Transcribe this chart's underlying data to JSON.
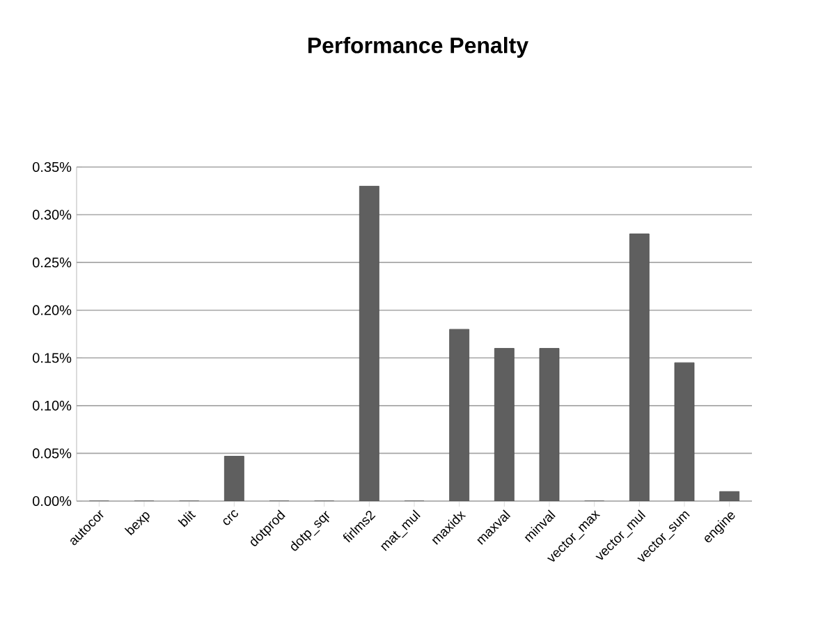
{
  "chart_data": {
    "type": "bar",
    "title": "**Performance Penalty**",
    "categories": [
      "autocor",
      "bexp",
      "blit",
      "crc",
      "dotprod",
      "dotp_sqr",
      "firlms2",
      "mat_mul",
      "maxidx",
      "maxval",
      "minval",
      "vector_max",
      "vector_mul",
      "vector_sum",
      "engine"
    ],
    "values": [
      0,
      0,
      0,
      0.047,
      0,
      0,
      0.33,
      0,
      0.18,
      0.16,
      0.16,
      0,
      0.28,
      0.145,
      0.01
    ],
    "color": "#5f5f5f",
    "ylim": [
      0,
      0.35
    ],
    "yticks": [
      {
        "value": 0,
        "label": "0.00%"
      },
      {
        "value": 0.05,
        "label": "0.05%"
      },
      {
        "value": 0.1,
        "label": "0.10%"
      },
      {
        "value": 0.15,
        "label": "0.15%"
      },
      {
        "value": 0.2,
        "label": "0.20%"
      },
      {
        "value": 0.25,
        "label": "0.25%"
      },
      {
        "value": 0.3,
        "label": "0.30%"
      },
      {
        "value": 0.35,
        "label": "0.35%"
      }
    ],
    "grid": "y"
  }
}
